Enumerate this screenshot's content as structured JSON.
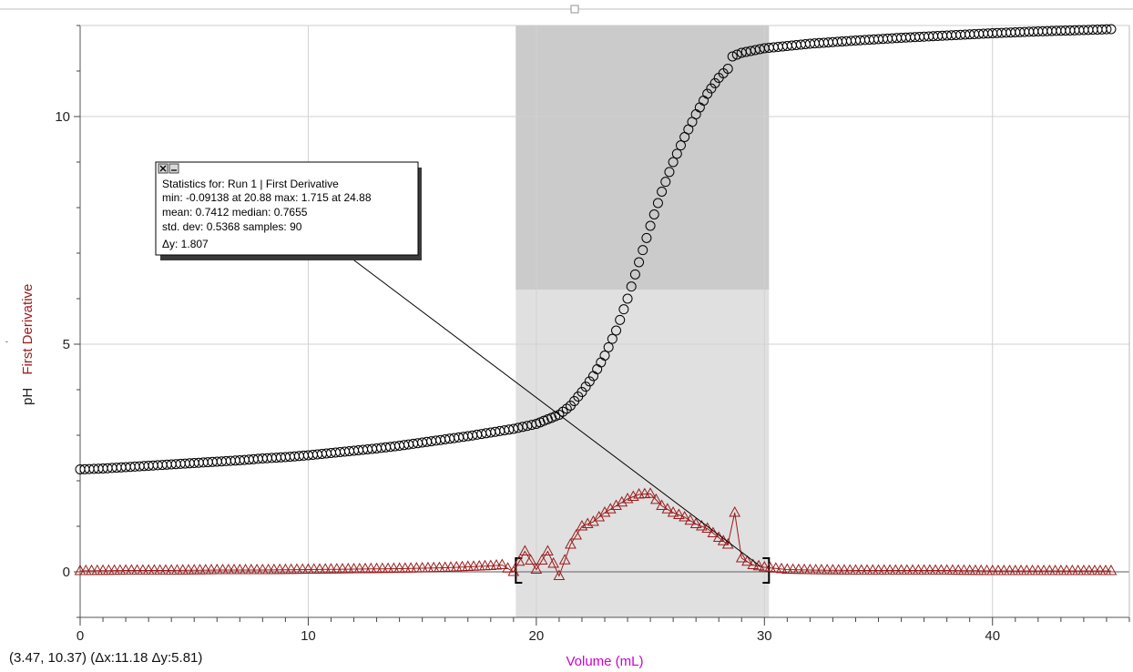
{
  "readout": {
    "coordinates": "(3.47, 10.37) (Δx:11.18 Δy:5.81)"
  },
  "stats_box": {
    "line1": "Statistics for: Run 1 | First Derivative",
    "line2": "min: -0.09138 at 20.88 max: 1.715 at 24.88",
    "line3": "mean: 0.7412 median: 0.7655",
    "line4": "std. dev: 0.5368 samples: 90",
    "line5": "Δy: 1.807",
    "close_icon": "close-icon",
    "minimize_icon": "minimize-icon"
  },
  "chart_data": {
    "type": "scatter",
    "xlabel": "Volume (mL)",
    "ylabel_parts": [
      "pH",
      "First Derivative"
    ],
    "xlim": [
      0,
      46
    ],
    "ylim": [
      -1,
      12
    ],
    "x_ticks": [
      0,
      10,
      20,
      30,
      40
    ],
    "y_ticks": [
      0,
      5,
      10
    ],
    "grid": true,
    "selection": {
      "x_start": 19.1,
      "x_end": 30.2
    },
    "stats_region_top": 6.2,
    "colors": {
      "ph": "#000000",
      "derivative": "#9b1c1c",
      "xlabel": "#cc00cc",
      "ylabel": "#9b1c1c",
      "selection": "#e0e0e0",
      "selection_dark": "#cbcbcb",
      "grid": "#d2d2d2"
    },
    "series": [
      {
        "name": "pH",
        "marker": "circle",
        "x": [
          0,
          1,
          2,
          3,
          4,
          5,
          6,
          7,
          8,
          9,
          10,
          11,
          12,
          13,
          14,
          15,
          16,
          17,
          18,
          19,
          20,
          20.5,
          21,
          21.5,
          22,
          22.5,
          23,
          23.5,
          24,
          24.5,
          25,
          25.5,
          26,
          26.5,
          27,
          27.5,
          28,
          28.4,
          28.6,
          29,
          30,
          32,
          34,
          36,
          38,
          40,
          42,
          44,
          45.2
        ],
        "y": [
          2.25,
          2.27,
          2.3,
          2.33,
          2.36,
          2.39,
          2.42,
          2.45,
          2.49,
          2.52,
          2.56,
          2.61,
          2.66,
          2.71,
          2.77,
          2.84,
          2.91,
          2.98,
          3.06,
          3.14,
          3.25,
          3.35,
          3.45,
          3.65,
          3.95,
          4.3,
          4.75,
          5.3,
          6.0,
          6.8,
          7.6,
          8.35,
          9.0,
          9.55,
          10.05,
          10.5,
          10.85,
          11.05,
          11.32,
          11.4,
          11.5,
          11.6,
          11.67,
          11.73,
          11.78,
          11.83,
          11.87,
          11.9,
          11.92
        ]
      },
      {
        "name": "First Derivative",
        "marker": "triangle",
        "x": [
          0,
          2,
          4,
          6,
          8,
          10,
          12,
          14,
          16,
          17,
          18,
          18.5,
          19,
          19.5,
          20,
          20.5,
          21,
          21.5,
          22,
          22.5,
          23,
          23.5,
          24,
          24.5,
          25,
          25.5,
          26,
          26.5,
          27,
          27.5,
          28,
          28.4,
          28.7,
          29,
          29.5,
          30,
          31,
          32,
          34,
          36,
          38,
          40,
          42,
          44,
          45.2
        ],
        "y": [
          0.02,
          0.03,
          0.03,
          0.04,
          0.04,
          0.05,
          0.06,
          0.07,
          0.09,
          0.11,
          0.13,
          0.15,
          0.0,
          0.45,
          0.05,
          0.45,
          -0.09,
          0.6,
          1.0,
          1.1,
          1.3,
          1.45,
          1.6,
          1.7,
          1.715,
          1.45,
          1.3,
          1.2,
          1.05,
          0.95,
          0.75,
          0.6,
          1.3,
          0.3,
          0.15,
          0.1,
          0.05,
          0.04,
          0.03,
          0.03,
          0.03,
          0.02,
          0.02,
          0.02,
          0.02
        ]
      }
    ]
  }
}
